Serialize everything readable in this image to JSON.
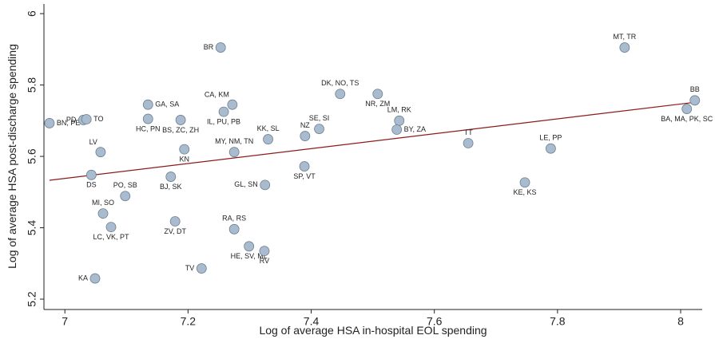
{
  "chart_data": {
    "type": "scatter",
    "x_label": "Log of average HSA in-hospital EOL spending",
    "y_label": "Log of average HSA post-discharge spending",
    "xlim": [
      6.966,
      8.035
    ],
    "ylim": [
      5.171,
      6.027
    ],
    "xticks": [
      7,
      7.2,
      7.4,
      7.6,
      7.8,
      8
    ],
    "yticks": [
      5.2,
      5.4,
      5.6,
      5.8,
      6
    ],
    "grid": false,
    "point_color": "#a9bccf",
    "line_color": "#8b1a1a",
    "series": [
      {
        "labels": [
          "BN, PE",
          "BR",
          "MT, TR",
          "BB",
          "BA, MA, PK, SC",
          "DK, NO, TS",
          "NR, ZM",
          "LM, RK",
          "BY, ZA",
          "SE, SI",
          "NZ",
          "KK, SL",
          "CA, KM",
          "IL, PU, PB",
          "GA, SA",
          "HC, PN",
          "BS, ZC, ZH",
          "PD",
          "TO",
          "LV",
          "MY, NM, TN",
          "KN",
          "TT",
          "LE, PP",
          "KE, KS",
          "DS",
          "PO, SB",
          "BJ, SK",
          "GL, SN",
          "SP, VT",
          "MI, SO",
          "LC, VK, PT",
          "ZV, DT",
          "RA, RS",
          "HE, SV, ML",
          "RV",
          "TV",
          "KA"
        ],
        "x": [
          6.975,
          7.253,
          7.909,
          8.023,
          8.01,
          7.447,
          7.508,
          7.543,
          7.539,
          7.413,
          7.39,
          7.33,
          7.272,
          7.258,
          7.135,
          7.135,
          7.188,
          7.03,
          7.035,
          7.058,
          7.275,
          7.194,
          7.655,
          7.789,
          7.747,
          7.043,
          7.098,
          7.172,
          7.325,
          7.389,
          7.062,
          7.075,
          7.179,
          7.275,
          7.299,
          7.324,
          7.222,
          7.049
        ],
        "values": [
          5.693,
          5.905,
          5.905,
          5.757,
          5.733,
          5.775,
          5.775,
          5.7,
          5.675,
          5.677,
          5.657,
          5.648,
          5.745,
          5.725,
          5.745,
          5.705,
          5.702,
          5.702,
          5.704,
          5.612,
          5.612,
          5.62,
          5.637,
          5.622,
          5.527,
          5.548,
          5.489,
          5.543,
          5.52,
          5.572,
          5.44,
          5.402,
          5.418,
          5.396,
          5.348,
          5.335,
          5.286,
          5.258
        ]
      }
    ],
    "fit_line": {
      "x": [
        6.975,
        8.025
      ],
      "values": [
        5.533,
        5.752
      ]
    }
  }
}
